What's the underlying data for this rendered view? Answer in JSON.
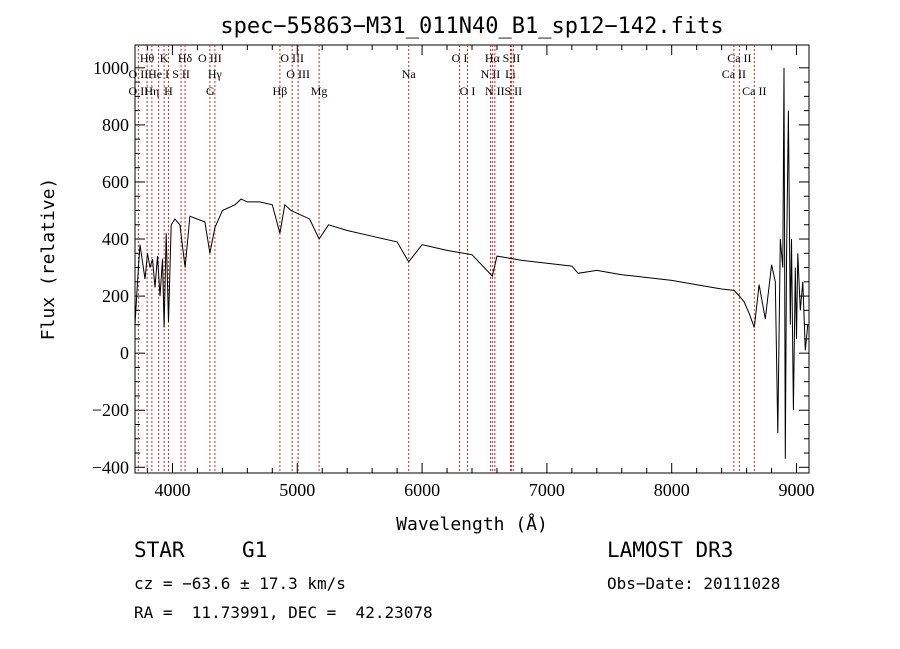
{
  "chart_data": {
    "type": "line",
    "title": "spec−55863−M31_011N40_B1_sp12−142.fits",
    "xlabel": "Wavelength (Å)",
    "ylabel": "Flux (relative)",
    "xlim": [
      3700,
      9100
    ],
    "ylim": [
      -420,
      1080
    ],
    "xticks": [
      4000,
      5000,
      6000,
      7000,
      8000,
      9000
    ],
    "xtick_labels": [
      "4000",
      "5000",
      "6000",
      "7000",
      "8000",
      "9000"
    ],
    "yticks": [
      -400,
      -200,
      0,
      200,
      400,
      600,
      800,
      1000
    ],
    "ytick_labels": [
      "−400",
      "−200",
      "0",
      "200",
      "400",
      "600",
      "800",
      "1000"
    ],
    "series": [
      {
        "name": "spectrum",
        "x": [
          3700,
          3720,
          3740,
          3760,
          3780,
          3800,
          3820,
          3840,
          3860,
          3880,
          3900,
          3920,
          3933,
          3950,
          3968,
          3990,
          4020,
          4060,
          4101,
          4140,
          4200,
          4260,
          4300,
          4340,
          4400,
          4500,
          4550,
          4600,
          4700,
          4800,
          4861,
          4900,
          4950,
          5000,
          5100,
          5175,
          5250,
          5400,
          5600,
          5800,
          5893,
          6000,
          6200,
          6400,
          6563,
          6600,
          6800,
          7000,
          7200,
          7250,
          7400,
          7600,
          7800,
          8000,
          8200,
          8400,
          8500,
          8542,
          8580,
          8620,
          8662,
          8700,
          8750,
          8800,
          8830,
          8850,
          8870,
          8890,
          8900,
          8910,
          8920,
          8935,
          8950,
          8960,
          8975,
          8990,
          9000,
          9010,
          9030,
          9050,
          9070,
          9090
        ],
        "y": [
          100,
          250,
          380,
          320,
          260,
          350,
          300,
          330,
          230,
          340,
          200,
          330,
          90,
          420,
          110,
          450,
          470,
          450,
          300,
          480,
          470,
          460,
          350,
          440,
          500,
          520,
          540,
          530,
          530,
          520,
          420,
          520,
          500,
          490,
          470,
          400,
          450,
          430,
          410,
          390,
          320,
          380,
          360,
          345,
          270,
          340,
          325,
          315,
          305,
          280,
          290,
          275,
          265,
          255,
          240,
          225,
          220,
          200,
          180,
          140,
          90,
          240,
          120,
          310,
          250,
          -280,
          400,
          300,
          1000,
          -370,
          320,
          850,
          100,
          400,
          -200,
          300,
          50,
          350,
          150,
          250,
          10,
          100
        ]
      }
    ],
    "lines": [
      {
        "label": "O II",
        "wave": 3727,
        "row": 2
      },
      {
        "label": "Hθ",
        "wave": 3797,
        "row": 0
      },
      {
        "label": "O II",
        "wave": 3727,
        "row": 1
      },
      {
        "label": "Hη",
        "wave": 3835,
        "row": 2
      },
      {
        "label": "He I",
        "wave": 3889,
        "row": 1
      },
      {
        "label": "K",
        "wave": 3933,
        "row": 0
      },
      {
        "label": "H",
        "wave": 3968,
        "row": 2
      },
      {
        "label": "S II",
        "wave": 4069,
        "row": 1
      },
      {
        "label": "Hδ",
        "wave": 4101,
        "row": 0
      },
      {
        "label": "O III",
        "wave": 4300,
        "row": 0
      },
      {
        "label": "Hγ",
        "wave": 4340,
        "row": 1
      },
      {
        "label": "G",
        "wave": 4304,
        "row": 2
      },
      {
        "label": "Hβ",
        "wave": 4861,
        "row": 2
      },
      {
        "label": "O III",
        "wave": 4959,
        "row": 0
      },
      {
        "label": "O III",
        "wave": 5007,
        "row": 1
      },
      {
        "label": "Mg",
        "wave": 5175,
        "row": 2
      },
      {
        "label": "Na",
        "wave": 5893,
        "row": 1
      },
      {
        "label": "O I",
        "wave": 6300,
        "row": 0
      },
      {
        "label": "O I",
        "wave": 6364,
        "row": 2
      },
      {
        "label": "Hα",
        "wave": 6563,
        "row": 0
      },
      {
        "label": "N II",
        "wave": 6548,
        "row": 1
      },
      {
        "label": "N II",
        "wave": 6583,
        "row": 2
      },
      {
        "label": "S II",
        "wave": 6716,
        "row": 0
      },
      {
        "label": "Li",
        "wave": 6708,
        "row": 1
      },
      {
        "label": "S II",
        "wave": 6731,
        "row": 2
      },
      {
        "label": "Ca II",
        "wave": 8542,
        "row": 0
      },
      {
        "label": "Ca II",
        "wave": 8498,
        "row": 1
      },
      {
        "label": "Ca II",
        "wave": 8662,
        "row": 2
      }
    ]
  },
  "info": {
    "class_label": "STAR",
    "subclass_label": "G1",
    "survey": "LAMOST DR3",
    "cz": "cz = −63.6 ± 17.3 km/s",
    "obs_date": "Obs−Date: 20111028",
    "coords": "RA =  11.73991, DEC =  42.23078"
  }
}
